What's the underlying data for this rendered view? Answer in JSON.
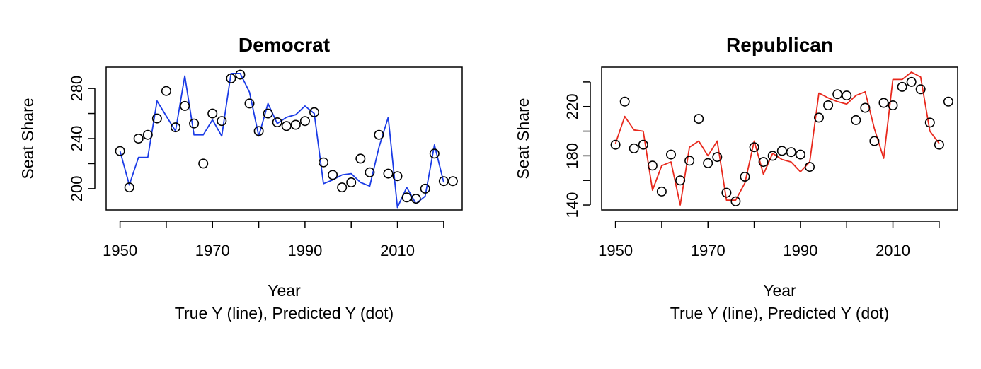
{
  "chart_data": [
    {
      "type": "line",
      "title": "Democrat",
      "xlabel": "Year",
      "xlabel2": "True Y (line), Predicted Y (dot)",
      "ylabel": "Seat Share",
      "xlim": [
        1947,
        2024
      ],
      "ylim": [
        183,
        297
      ],
      "x_ticks": [
        1950,
        1970,
        1990,
        2010
      ],
      "x_tick_marks": [
        1950,
        1960,
        1970,
        1980,
        1990,
        2000,
        2010,
        2020
      ],
      "y_ticks": [
        200,
        240,
        280
      ],
      "y_tick_marks": [
        200,
        220,
        240,
        260,
        280
      ],
      "grid": false,
      "series": [
        {
          "role": "true",
          "style": "line",
          "color": "#1a3be6",
          "x": [
            1950,
            1952,
            1954,
            1956,
            1958,
            1960,
            1962,
            1964,
            1966,
            1968,
            1970,
            1972,
            1974,
            1976,
            1978,
            1980,
            1982,
            1984,
            1986,
            1988,
            1990,
            1992,
            1994,
            1996,
            1998,
            2000,
            2002,
            2004,
            2006,
            2008,
            2010,
            2012,
            2014,
            2016,
            2018,
            2020
          ],
          "y": [
            230,
            203,
            225,
            225,
            270,
            258,
            246,
            290,
            243,
            243,
            255,
            242,
            292,
            292,
            277,
            242,
            268,
            252,
            257,
            259,
            266,
            260,
            204,
            207,
            211,
            212,
            205,
            202,
            233,
            257,
            185,
            201,
            188,
            194,
            235,
            205
          ]
        },
        {
          "role": "predicted",
          "style": "points",
          "color": "#000000",
          "x": [
            1950,
            1952,
            1954,
            1956,
            1958,
            1960,
            1962,
            1964,
            1966,
            1968,
            1970,
            1972,
            1974,
            1976,
            1978,
            1980,
            1982,
            1984,
            1986,
            1988,
            1990,
            1992,
            1994,
            1996,
            1998,
            2000,
            2002,
            2004,
            2006,
            2008,
            2010,
            2012,
            2014,
            2016,
            2018,
            2020,
            2022
          ],
          "y": [
            230,
            201,
            240,
            243,
            256,
            278,
            249,
            266,
            252,
            220,
            260,
            254,
            288,
            291,
            268,
            246,
            260,
            253,
            250,
            251,
            254,
            261,
            221,
            211,
            201,
            205,
            224,
            213,
            243,
            212,
            210,
            193,
            192,
            200,
            228,
            206,
            206
          ]
        }
      ]
    },
    {
      "type": "line",
      "title": "Republican",
      "xlabel": "Year",
      "xlabel2": "True Y (line), Predicted Y (dot)",
      "ylabel": "Seat Share",
      "xlim": [
        1947,
        2024
      ],
      "ylim": [
        136,
        252
      ],
      "x_ticks": [
        1950,
        1970,
        1990,
        2010
      ],
      "x_tick_marks": [
        1950,
        1960,
        1970,
        1980,
        1990,
        2000,
        2010,
        2020
      ],
      "y_ticks": [
        140,
        180,
        220
      ],
      "y_tick_marks": [
        140,
        160,
        180,
        200,
        220,
        240
      ],
      "grid": false,
      "series": [
        {
          "role": "true",
          "style": "line",
          "color": "#e8281c",
          "x": [
            1950,
            1952,
            1954,
            1956,
            1958,
            1960,
            1962,
            1964,
            1966,
            1968,
            1970,
            1972,
            1974,
            1976,
            1978,
            1980,
            1982,
            1984,
            1986,
            1988,
            1990,
            1992,
            1994,
            1996,
            1998,
            2000,
            2002,
            2004,
            2006,
            2008,
            2010,
            2012,
            2014,
            2016,
            2018,
            2020
          ],
          "y": [
            190,
            212,
            201,
            200,
            152,
            172,
            175,
            140,
            187,
            192,
            180,
            192,
            144,
            144,
            158,
            192,
            165,
            182,
            177,
            175,
            167,
            175,
            231,
            227,
            224,
            222,
            229,
            232,
            202,
            178,
            242,
            242,
            248,
            244,
            200,
            190
          ]
        },
        {
          "role": "predicted",
          "style": "points",
          "color": "#000000",
          "x": [
            1950,
            1952,
            1954,
            1956,
            1958,
            1960,
            1962,
            1964,
            1966,
            1968,
            1970,
            1972,
            1974,
            1976,
            1978,
            1980,
            1982,
            1984,
            1986,
            1988,
            1990,
            1992,
            1994,
            1996,
            1998,
            2000,
            2002,
            2004,
            2006,
            2008,
            2010,
            2012,
            2014,
            2016,
            2018,
            2020,
            2022
          ],
          "y": [
            189,
            224,
            186,
            189,
            172,
            151,
            181,
            160,
            176,
            210,
            174,
            179,
            150,
            143,
            163,
            187,
            175,
            180,
            184,
            183,
            181,
            171,
            211,
            221,
            230,
            229,
            209,
            219,
            192,
            223,
            221,
            236,
            240,
            234,
            207,
            189,
            224
          ]
        }
      ]
    }
  ]
}
